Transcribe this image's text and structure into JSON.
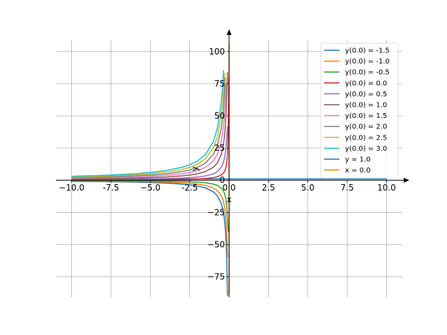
{
  "chart_data": {
    "type": "line",
    "x_label": "x",
    "y_label": "y",
    "x": [
      -10,
      -8,
      -6,
      -5,
      -4,
      -3,
      -2.5,
      -2,
      -1.5,
      -1,
      -0.75,
      -0.5,
      -0.4,
      -0.35,
      -0.3,
      -0.25,
      -0.2,
      -0.15,
      -0.1,
      -0.05,
      -0.025
    ],
    "series": [
      {
        "name": "y(0.0) = -1.5",
        "color": "#1f77b4",
        "values": [
          -0.9,
          -1.13,
          -1.5,
          -1.8,
          -2.25,
          -3,
          -3.6,
          -4.5,
          -6,
          -9,
          -12,
          -18,
          -22.5,
          -25.7,
          -30,
          -36,
          -45,
          -60,
          -90,
          null,
          null
        ]
      },
      {
        "name": "y(0.0) = -1.0",
        "color": "#ff7f0e",
        "values": [
          -0.6,
          -0.75,
          -1,
          -1.2,
          -1.5,
          -2,
          -2.4,
          -3,
          -4,
          -6,
          -8,
          -12,
          -15,
          -17.1,
          -20,
          -24,
          -30,
          -40,
          -60,
          null,
          null
        ]
      },
      {
        "name": "y(0.0) = -0.5",
        "color": "#2ca02c",
        "values": [
          -0.3,
          -0.38,
          -0.5,
          -0.6,
          -0.75,
          -1,
          -1.2,
          -1.5,
          -2,
          -3,
          -4,
          -6,
          -7.5,
          -8.57,
          -10,
          -12,
          -15,
          -20,
          -30,
          -40,
          null
        ]
      },
      {
        "name": "y(0.0) = 0.0",
        "color": "#d62728",
        "values": [
          0.2,
          0.25,
          0.33,
          0.4,
          0.5,
          0.67,
          0.8,
          1,
          1.33,
          2,
          2.67,
          4,
          5,
          5.71,
          6.67,
          8,
          10,
          13.3,
          20,
          40,
          80
        ]
      },
      {
        "name": "y(0.0) = 0.5",
        "color": "#9467bd",
        "values": [
          0.5,
          0.63,
          0.83,
          1,
          1.25,
          1.67,
          2,
          2.5,
          3.33,
          5,
          6.67,
          10,
          12.5,
          14.3,
          16.7,
          20,
          25,
          33.3,
          42,
          null,
          null
        ]
      },
      {
        "name": "y(0.0) = 1.0",
        "color": "#8c564b",
        "values": [
          1,
          1.25,
          1.67,
          2,
          2.5,
          3.33,
          4,
          5,
          6.67,
          10,
          13.3,
          20,
          25,
          28.6,
          33.3,
          40,
          50,
          66.7,
          84,
          null,
          null
        ]
      },
      {
        "name": "y(0.0) = 1.5",
        "color": "#e377c2",
        "values": [
          1.5,
          1.88,
          2.5,
          3,
          3.75,
          5,
          6,
          7.5,
          10,
          15,
          20,
          30,
          37.5,
          42.9,
          50,
          60,
          75,
          null,
          null,
          null,
          null
        ]
      },
      {
        "name": "y(0.0) = 2.0",
        "color": "#7f7f7f",
        "values": [
          2,
          2.5,
          3.33,
          4,
          5,
          6.67,
          8,
          10,
          13.3,
          20,
          26.7,
          40,
          50,
          57.1,
          66.7,
          80,
          null,
          null,
          null,
          null,
          null
        ]
      },
      {
        "name": "y(0.0) = 2.5",
        "color": "#bcbd22",
        "values": [
          2.5,
          3.13,
          4.17,
          5,
          6.25,
          8.33,
          10,
          12.5,
          16.67,
          25,
          33.3,
          50,
          62.5,
          71.4,
          83.3,
          null,
          null,
          null,
          null,
          null,
          null
        ]
      },
      {
        "name": "y(0.0) = 3.0",
        "color": "#17becf",
        "values": [
          3,
          3.75,
          5,
          6,
          7.5,
          10,
          12,
          15,
          20,
          30,
          40,
          60,
          75,
          85.7,
          null,
          null,
          null,
          null,
          null,
          null,
          null
        ]
      }
    ],
    "asymptotes": [
      {
        "name": "y = 1.0",
        "color": "#1f77b4",
        "y": 1.0
      },
      {
        "name": "x = 0.0",
        "color": "#ff7f0e",
        "x": 0.0
      }
    ],
    "xlim": [
      -11,
      11
    ],
    "ylim": [
      -91,
      114
    ],
    "xticks": [
      {
        "value": -10,
        "label": "−10.0"
      },
      -7.5,
      {
        "value": -5,
        "label": "−5.0"
      },
      -2.5,
      {
        "value": 0,
        "label": "0.0"
      },
      2.5,
      {
        "value": 5,
        "label": "5.0"
      },
      7.5,
      {
        "value": 10,
        "label": "10.0"
      }
    ],
    "yticks": [
      {
        "value": -75,
        "label": "−75"
      },
      {
        "value": -50,
        "label": "−50"
      },
      {
        "value": -25,
        "label": "−25"
      },
      0,
      25,
      50,
      75,
      100
    ],
    "grid": true,
    "legend": "upper right"
  }
}
